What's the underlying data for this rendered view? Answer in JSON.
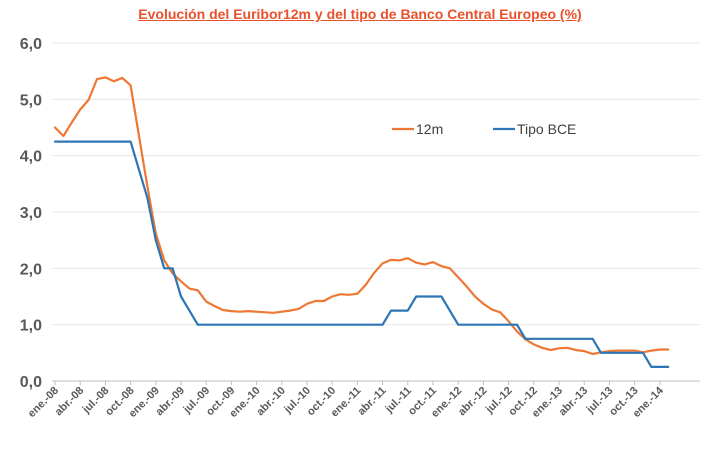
{
  "chart_data": {
    "type": "line",
    "title": "Evolución del Euribor12m y del tipo de Banco Central Europeo (%)",
    "xlabel": "",
    "ylabel": "",
    "ylim": [
      0,
      6
    ],
    "yticks": [
      "0,0",
      "1,0",
      "2,0",
      "3,0",
      "4,0",
      "5,0",
      "6,0"
    ],
    "grid": true,
    "legend_position": "top-right (inside plot)",
    "colors": {
      "title": "#e8512b",
      "euribor": "#ee7733",
      "bce": "#2e75b6",
      "grid": "#e6e6e6",
      "axis": "#666666",
      "tick_text": "#595959"
    },
    "x": [
      "ene.-08",
      "feb.-08",
      "mar.-08",
      "abr.-08",
      "may.-08",
      "jun.-08",
      "jul.-08",
      "ago.-08",
      "sep.-08",
      "oct.-08",
      "nov.-08",
      "dic.-08",
      "ene.-09",
      "feb.-09",
      "mar.-09",
      "abr.-09",
      "may.-09",
      "jun.-09",
      "jul.-09",
      "ago.-09",
      "sep.-09",
      "oct.-09",
      "nov.-09",
      "dic.-09",
      "ene.-10",
      "feb.-10",
      "mar.-10",
      "abr.-10",
      "may.-10",
      "jun.-10",
      "jul.-10",
      "ago.-10",
      "sep.-10",
      "oct.-10",
      "nov.-10",
      "dic.-10",
      "ene.-11",
      "feb.-11",
      "mar.-11",
      "abr.-11",
      "may.-11",
      "jun.-11",
      "jul.-11",
      "ago.-11",
      "sep.-11",
      "oct.-11",
      "nov.-11",
      "dic.-11",
      "ene.-12",
      "feb.-12",
      "mar.-12",
      "abr.-12",
      "may.-12",
      "jun.-12",
      "jul.-12",
      "ago.-12",
      "sep.-12",
      "oct.-12",
      "nov.-12",
      "dic.-12",
      "ene.-13",
      "feb.-13",
      "mar.-13",
      "abr.-13",
      "may.-13",
      "jun.-13",
      "jul.-13",
      "ago.-13",
      "sep.-13",
      "oct.-13",
      "nov.-13",
      "dic.-13",
      "ene.-14",
      "feb.-14"
    ],
    "x_tick_labels": [
      "ene.-08",
      "abr.-08",
      "jul.-08",
      "oct.-08",
      "ene.-09",
      "abr.-09",
      "jul.-09",
      "oct.-09",
      "ene.-10",
      "abr.-10",
      "jul.-10",
      "oct.-10",
      "ene.-11",
      "abr.-11",
      "jul.-11",
      "oct.-11",
      "ene.-12",
      "abr.-12",
      "jul.-12",
      "oct.-12",
      "ene.-13",
      "abr.-13",
      "jul.-13",
      "oct.-13",
      "ene.-14"
    ],
    "series": [
      {
        "name": "12m",
        "color": "#ee7733",
        "values": [
          4.5,
          4.35,
          4.59,
          4.82,
          4.99,
          5.36,
          5.39,
          5.32,
          5.38,
          5.25,
          4.35,
          3.45,
          2.62,
          2.14,
          1.91,
          1.77,
          1.64,
          1.61,
          1.41,
          1.33,
          1.26,
          1.24,
          1.23,
          1.24,
          1.23,
          1.22,
          1.21,
          1.23,
          1.25,
          1.28,
          1.37,
          1.42,
          1.42,
          1.5,
          1.54,
          1.53,
          1.55,
          1.71,
          1.92,
          2.09,
          2.15,
          2.14,
          2.18,
          2.1,
          2.07,
          2.11,
          2.04,
          2.0,
          1.84,
          1.68,
          1.5,
          1.37,
          1.27,
          1.22,
          1.06,
          0.88,
          0.74,
          0.65,
          0.59,
          0.55,
          0.58,
          0.59,
          0.55,
          0.53,
          0.48,
          0.51,
          0.53,
          0.54,
          0.54,
          0.54,
          0.51,
          0.54,
          0.56,
          0.56
        ]
      },
      {
        "name": "Tipo BCE",
        "color": "#2e75b6",
        "values": [
          4.25,
          4.25,
          4.25,
          4.25,
          4.25,
          4.25,
          4.25,
          4.25,
          4.25,
          4.25,
          3.75,
          3.25,
          2.5,
          2.0,
          2.0,
          1.5,
          1.25,
          1.0,
          1.0,
          1.0,
          1.0,
          1.0,
          1.0,
          1.0,
          1.0,
          1.0,
          1.0,
          1.0,
          1.0,
          1.0,
          1.0,
          1.0,
          1.0,
          1.0,
          1.0,
          1.0,
          1.0,
          1.0,
          1.0,
          1.0,
          1.25,
          1.25,
          1.25,
          1.5,
          1.5,
          1.5,
          1.5,
          1.25,
          1.0,
          1.0,
          1.0,
          1.0,
          1.0,
          1.0,
          1.0,
          1.0,
          0.75,
          0.75,
          0.75,
          0.75,
          0.75,
          0.75,
          0.75,
          0.75,
          0.75,
          0.5,
          0.5,
          0.5,
          0.5,
          0.5,
          0.5,
          0.25,
          0.25,
          0.25
        ]
      }
    ]
  }
}
